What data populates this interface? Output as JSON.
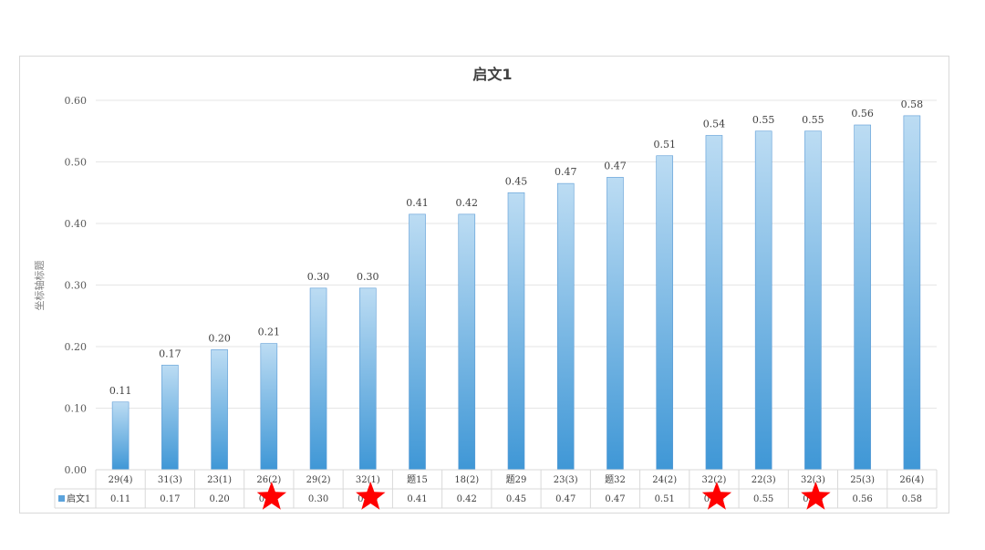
{
  "chart_data": {
    "type": "bar",
    "title": "启文1",
    "ylabel": "坐标轴标题",
    "xlabel": "",
    "ylim": [
      0,
      0.6
    ],
    "yticks": [
      "0.00",
      "0.10",
      "0.20",
      "0.30",
      "0.40",
      "0.50",
      "0.60"
    ],
    "grid": true,
    "legend": "data-table",
    "bar_color": "#5ba3dc",
    "categories": [
      "29(4)",
      "31(3)",
      "23(1)",
      "26(2)",
      "29(2)",
      "32(1)",
      "题15",
      "18(2)",
      "题29",
      "23(3)",
      "题32",
      "24(2)",
      "32(2)",
      "22(3)",
      "32(3)",
      "25(3)",
      "26(4)"
    ],
    "series": [
      {
        "name": "启文1",
        "values": [
          0.11,
          0.17,
          0.195,
          0.205,
          0.295,
          0.295,
          0.415,
          0.415,
          0.45,
          0.465,
          0.475,
          0.51,
          0.543,
          0.55,
          0.55,
          0.56,
          0.575
        ],
        "labels": [
          "0.11",
          "0.17",
          "0.20",
          "0.21",
          "0.30",
          "0.30",
          "0.41",
          "0.42",
          "0.45",
          "0.47",
          "0.47",
          "0.51",
          "0.54",
          "0.55",
          "0.55",
          "0.56",
          "0.58"
        ]
      }
    ],
    "annotations": {
      "type": "star",
      "color": "#ff0000",
      "category_indices": [
        3,
        5,
        12,
        14
      ]
    }
  }
}
